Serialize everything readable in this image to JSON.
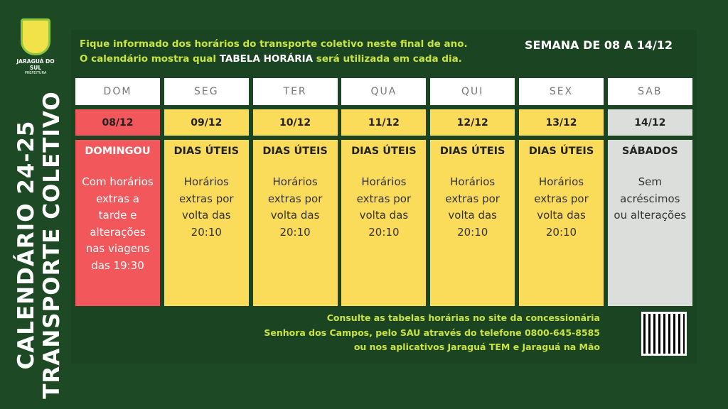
{
  "sidebar": {
    "title": "CALENDÁRIO 24-25",
    "subtitle": "TRANSPORTE COLETIVO"
  },
  "logo": {
    "name": "JARAGUÁ DO SUL",
    "org": "PREFEITURA"
  },
  "intro": {
    "line1": "Fique informado dos horários do transporte coletivo neste final de ano.",
    "line2_before": "O calendário mostra qual ",
    "line2_highlight": "TABELA HORÁRIA",
    "line2_after": " será utilizada em cada dia."
  },
  "week": "SEMANA DE 08 A 14/12",
  "days": [
    {
      "day": "DOM",
      "date": "08/12",
      "schedule": "DOMINGOU",
      "note": "Com horários extras a tarde e alterações nas viagens das 19:30",
      "color": "#f2575b"
    },
    {
      "day": "SEG",
      "date": "09/12",
      "schedule": "DIAS ÚTEIS",
      "note": "Horários extras por volta das 20:10",
      "color": "#fbdb5a"
    },
    {
      "day": "TER",
      "date": "10/12",
      "schedule": "DIAS ÚTEIS",
      "note": "Horários extras por volta das 20:10",
      "color": "#fbdb5a"
    },
    {
      "day": "QUA",
      "date": "11/12",
      "schedule": "DIAS ÚTEIS",
      "note": "Horários extras por volta das 20:10",
      "color": "#fbdb5a"
    },
    {
      "day": "QUI",
      "date": "12/12",
      "schedule": "DIAS ÚTEIS",
      "note": "Horários extras por volta das 20:10",
      "color": "#fbdb5a"
    },
    {
      "day": "SEX",
      "date": "13/12",
      "schedule": "DIAS ÚTEIS",
      "note": "Horários extras por volta das 20:10",
      "color": "#fbdb5a"
    },
    {
      "day": "SAB",
      "date": "14/12",
      "schedule": "SÁBADOS",
      "note": "Sem acréscimos ou alterações",
      "color": "#dcdedc"
    }
  ],
  "footer": {
    "lines": [
      "Consulte as tabelas horárias no site da concessionária",
      "Senhora dos Campos, pelo SAU através do telefone 0800-645-8585",
      "ou nos aplicativos Jaraguá TEM e Jaraguá na Mão"
    ]
  }
}
